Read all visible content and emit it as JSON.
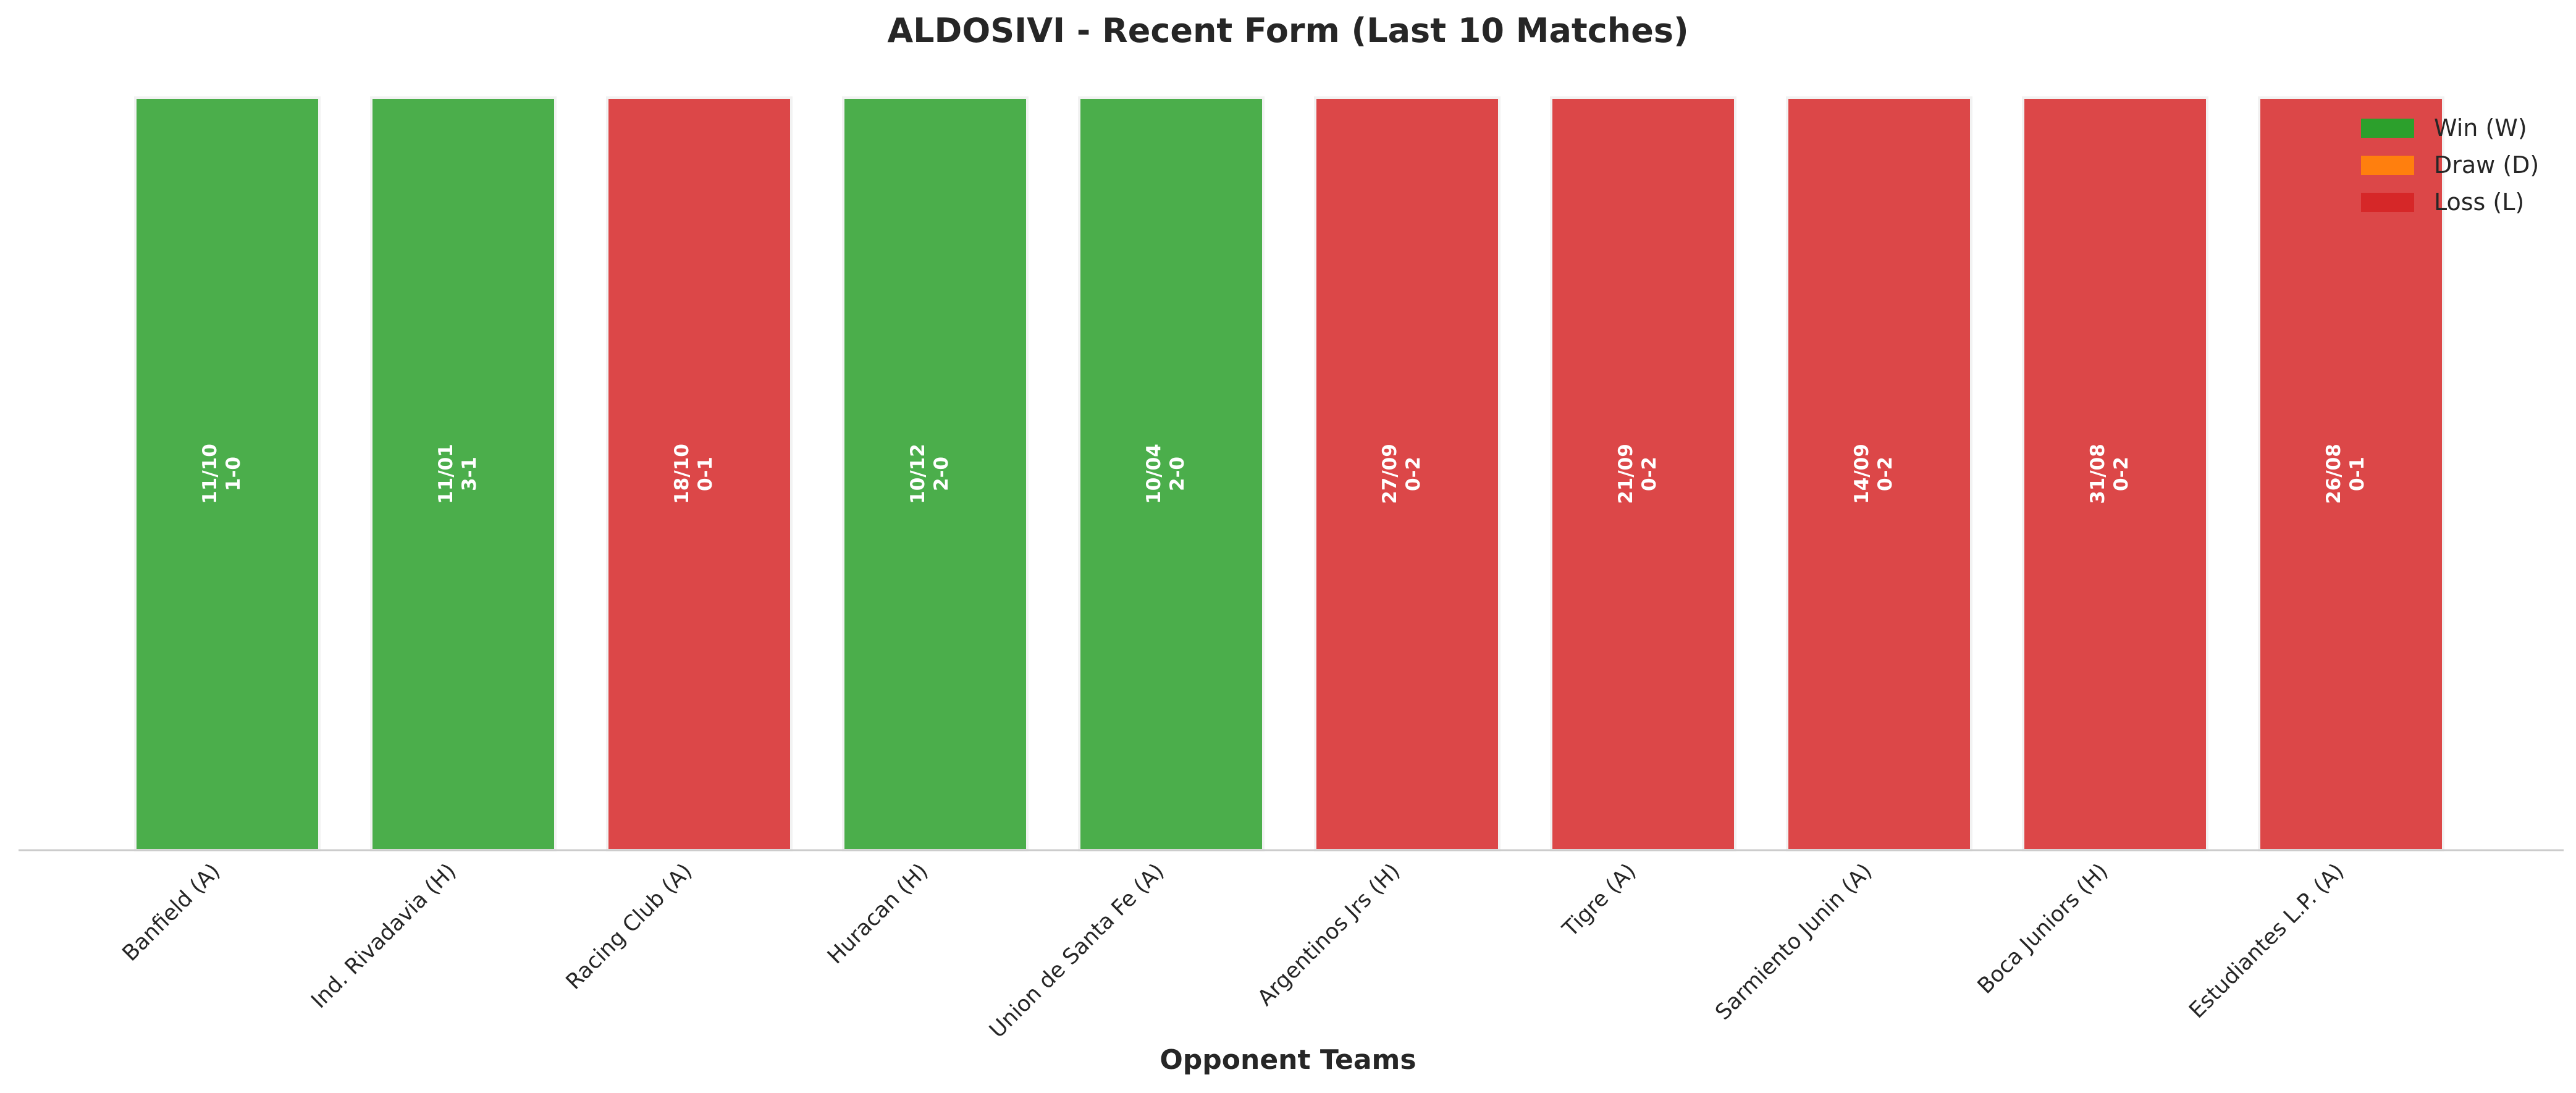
{
  "chart_data": {
    "type": "bar",
    "title": "ALDOSIVI - Recent Form (Last 10 Matches)",
    "xlabel": "Opponent Teams",
    "ylabel": "",
    "ylim": [
      0,
      1
    ],
    "grid": false,
    "legend_position": "top-right",
    "categories": [
      "Banfield (A)",
      "Ind. Rivadavia (H)",
      "Racing Club (A)",
      "Huracan (H)",
      "Union de Santa Fe (A)",
      "Argentinos Jrs (H)",
      "Tigre (A)",
      "Sarmiento Junin (A)",
      "Boca Juniors (H)",
      "Estudiantes L.P. (A)"
    ],
    "values": [
      1,
      1,
      1,
      1,
      1,
      1,
      1,
      1,
      1,
      1
    ],
    "results": [
      "W",
      "W",
      "L",
      "W",
      "W",
      "L",
      "L",
      "L",
      "L",
      "L"
    ],
    "dates": [
      "11/10",
      "11/01",
      "18/10",
      "10/12",
      "10/04",
      "27/09",
      "21/09",
      "14/09",
      "31/08",
      "26/08"
    ],
    "scores": [
      "1-0",
      "3-1",
      "0-1",
      "2-0",
      "2-0",
      "0-2",
      "0-2",
      "0-2",
      "0-2",
      "0-1"
    ],
    "legend": [
      {
        "key": "W",
        "label": "Win (W)",
        "color": "#2ca02c"
      },
      {
        "key": "D",
        "label": "Draw (D)",
        "color": "#ff7f0e"
      },
      {
        "key": "L",
        "label": "Loss (L)",
        "color": "#d62728"
      }
    ]
  }
}
